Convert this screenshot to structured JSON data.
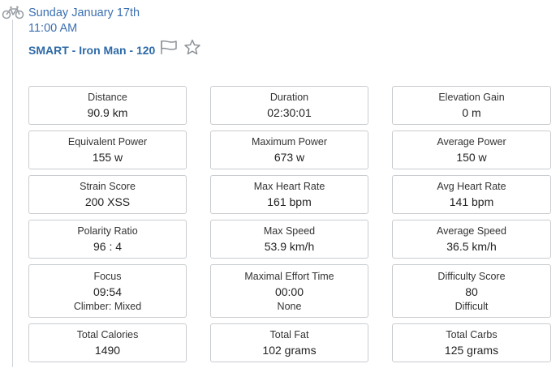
{
  "header": {
    "date": "Sunday January 17th",
    "time": "11:00 AM",
    "title": "SMART - Iron Man - 120",
    "icons": [
      "bike-icon",
      "flag-icon",
      "star-icon"
    ]
  },
  "colors": {
    "link": "#3b6fb0",
    "title": "#2e6aa8",
    "border": "#c9ccd0"
  },
  "metrics": [
    {
      "label": "Distance",
      "value": "90.9 km",
      "sub": ""
    },
    {
      "label": "Duration",
      "value": "02:30:01",
      "sub": ""
    },
    {
      "label": "Elevation Gain",
      "value": "0 m",
      "sub": ""
    },
    {
      "label": "Equivalent Power",
      "value": "155 w",
      "sub": ""
    },
    {
      "label": "Maximum Power",
      "value": "673 w",
      "sub": ""
    },
    {
      "label": "Average Power",
      "value": "150 w",
      "sub": ""
    },
    {
      "label": "Strain Score",
      "value": "200 XSS",
      "sub": ""
    },
    {
      "label": "Max Heart Rate",
      "value": "161 bpm",
      "sub": ""
    },
    {
      "label": "Avg Heart Rate",
      "value": "141 bpm",
      "sub": ""
    },
    {
      "label": "Polarity Ratio",
      "value": "96 : 4",
      "sub": ""
    },
    {
      "label": "Max Speed",
      "value": "53.9 km/h",
      "sub": ""
    },
    {
      "label": "Average Speed",
      "value": "36.5 km/h",
      "sub": ""
    },
    {
      "label": "Focus",
      "value": "09:54",
      "sub": "Climber: Mixed"
    },
    {
      "label": "Maximal Effort Time",
      "value": "00:00",
      "sub": "None"
    },
    {
      "label": "Difficulty Score",
      "value": "80",
      "sub": "Difficult"
    },
    {
      "label": "Total Calories",
      "value": "1490",
      "sub": ""
    },
    {
      "label": "Total Fat",
      "value": "102 grams",
      "sub": ""
    },
    {
      "label": "Total Carbs",
      "value": "125 grams",
      "sub": ""
    }
  ]
}
